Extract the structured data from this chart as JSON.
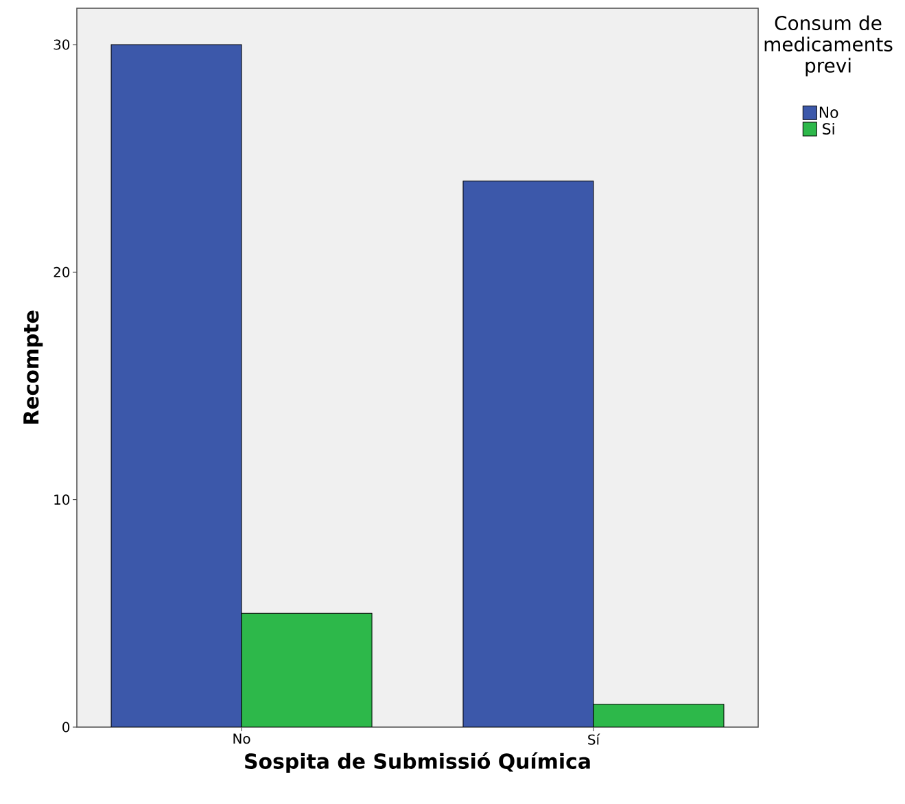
{
  "chart_data": {
    "type": "bar",
    "xlabel": "Sospita de Submissió Química",
    "ylabel": "Recompte",
    "legend_title": "Consum de medicaments previ",
    "categories": [
      "No",
      "Sí"
    ],
    "series": [
      {
        "name": "No",
        "color": "#3c58aa",
        "values": [
          30,
          24
        ]
      },
      {
        "name": "Si",
        "color": "#2db84a",
        "values": [
          5,
          1
        ]
      }
    ],
    "ylim": [
      0,
      31.6
    ],
    "yticks": [
      0,
      10,
      20,
      30
    ],
    "legend": "top right"
  }
}
